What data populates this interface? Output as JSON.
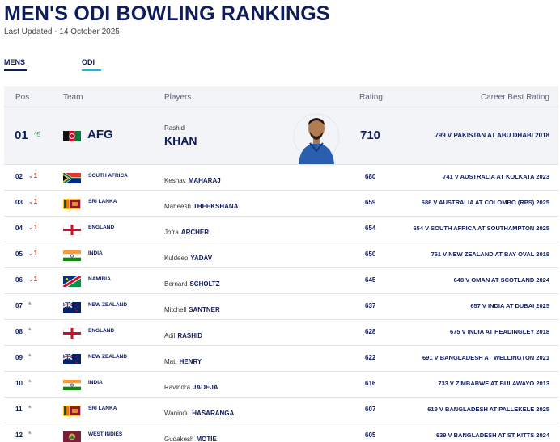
{
  "page": {
    "title": "MEN'S ODI BOWLING RANKINGS",
    "last_updated": "Last Updated - 14 October 2025"
  },
  "filters": {
    "gender": "MENS",
    "format": "ODI"
  },
  "columns": {
    "pos": "Pos",
    "team": "Team",
    "players": "Players",
    "rating": "Rating",
    "best": "Career Best Rating"
  },
  "top": {
    "pos": "01",
    "move": "^5",
    "team": "AFG",
    "flag": "afg-flag-icon",
    "first_name": "Rashid",
    "last_name": "KHAN",
    "rating": "710",
    "best": "799 V PAKISTAN AT ABU DHABI 2018"
  },
  "rows": [
    {
      "pos": "02",
      "move": "⌄1",
      "team": "SOUTH AFRICA",
      "flag": "south-africa-flag-icon",
      "first": "Keshav",
      "last": "MAHARAJ",
      "rating": "680",
      "best": "741 V AUSTRALIA AT KOLKATA 2023"
    },
    {
      "pos": "03",
      "move": "⌄1",
      "team": "SRI LANKA",
      "flag": "sri-lanka-flag-icon",
      "first": "Maheesh",
      "last": "THEEKSHANA",
      "rating": "659",
      "best": "686 V AUSTRALIA AT COLOMBO (RPS) 2025"
    },
    {
      "pos": "04",
      "move": "⌄1",
      "team": "ENGLAND",
      "flag": "england-flag-icon",
      "first": "Jofra",
      "last": "ARCHER",
      "rating": "654",
      "best": "654 V SOUTH AFRICA AT SOUTHAMPTON 2025"
    },
    {
      "pos": "05",
      "move": "⌄1",
      "team": "INDIA",
      "flag": "india-flag-icon",
      "first": "Kuldeep",
      "last": "YADAV",
      "rating": "650",
      "best": "761 V NEW ZEALAND AT BAY OVAL 2019"
    },
    {
      "pos": "06",
      "move": "⌄1",
      "team": "NAMIBIA",
      "flag": "namibia-flag-icon",
      "first": "Bernard",
      "last": "SCHOLTZ",
      "rating": "645",
      "best": "648 V OMAN AT SCOTLAND 2024"
    },
    {
      "pos": "07",
      "move": "•",
      "team": "NEW ZEALAND",
      "flag": "new-zealand-flag-icon",
      "first": "Mitchell",
      "last": "SANTNER",
      "rating": "637",
      "best": "657 V INDIA AT DUBAI 2025"
    },
    {
      "pos": "08",
      "move": "•",
      "team": "ENGLAND",
      "flag": "england-flag-icon",
      "first": "Adil",
      "last": "RASHID",
      "rating": "628",
      "best": "675 V INDIA AT HEADINGLEY 2018"
    },
    {
      "pos": "09",
      "move": "•",
      "team": "NEW ZEALAND",
      "flag": "new-zealand-flag-icon",
      "first": "Matt",
      "last": "HENRY",
      "rating": "622",
      "best": "691 V BANGLADESH AT WELLINGTON 2021"
    },
    {
      "pos": "10",
      "move": "•",
      "team": "INDIA",
      "flag": "india-flag-icon",
      "first": "Ravindra",
      "last": "JADEJA",
      "rating": "616",
      "best": "733 V ZIMBABWE AT BULAWAYO 2013"
    },
    {
      "pos": "11",
      "move": "•",
      "team": "SRI LANKA",
      "flag": "sri-lanka-flag-icon",
      "first": "Wanindu",
      "last": "HASARANGA",
      "rating": "607",
      "best": "619 V BANGLADESH AT PALLEKELE 2025"
    },
    {
      "pos": "12",
      "move": "•",
      "team": "WEST INDIES",
      "flag": "west-indies-flag-icon",
      "first": "Gudakesh",
      "last": "MOTIE",
      "rating": "605",
      "best": "639 V BANGLADESH AT ST KITTS 2024"
    }
  ]
}
